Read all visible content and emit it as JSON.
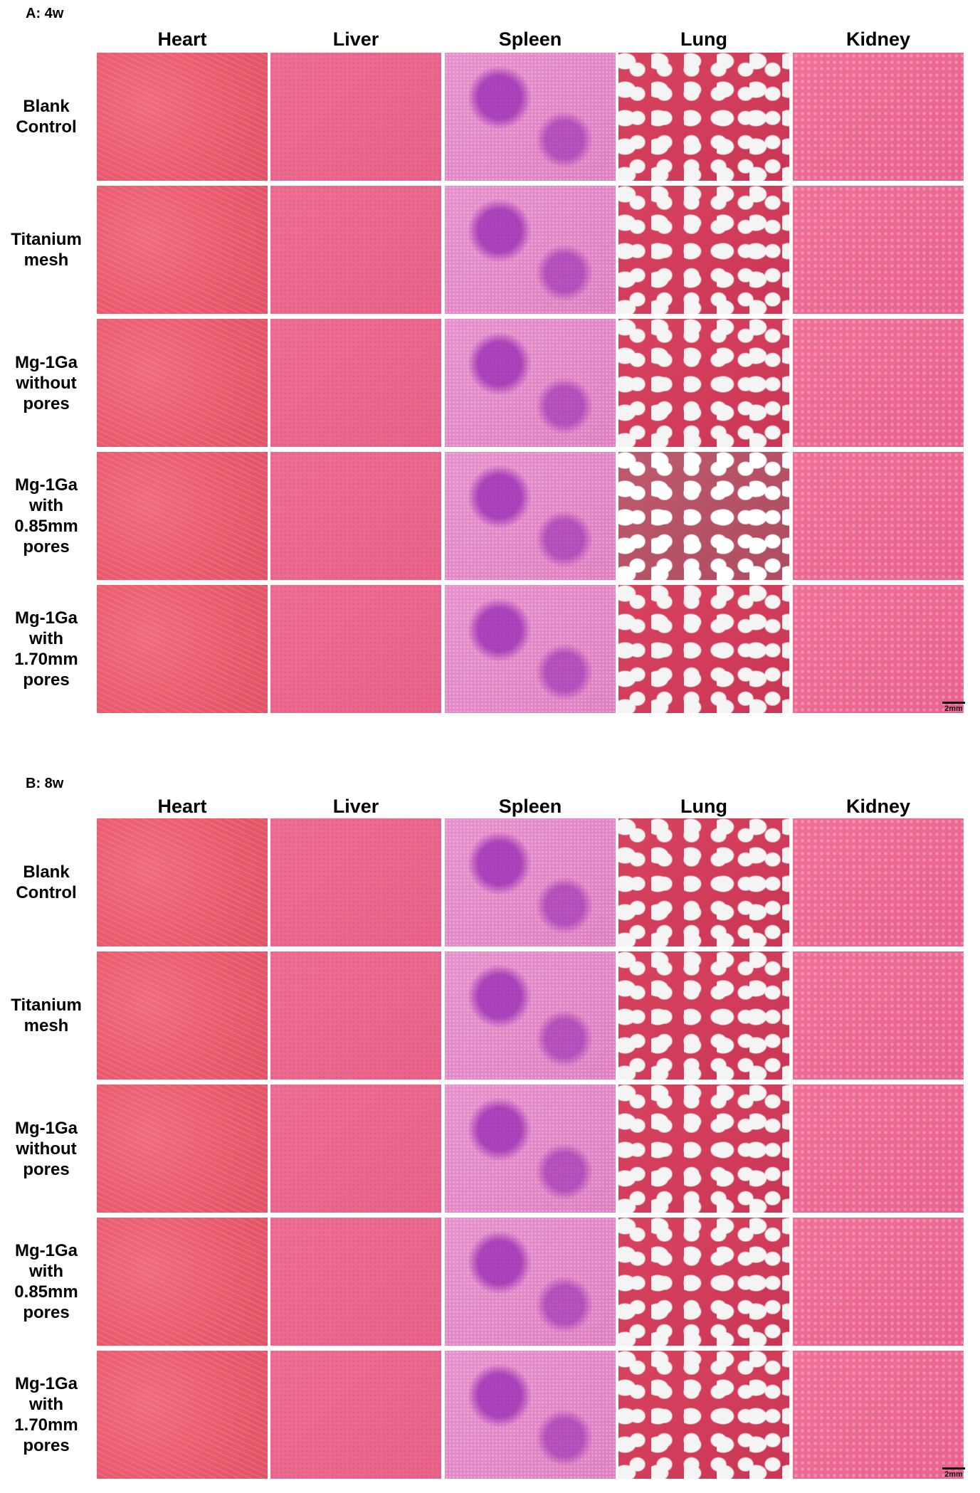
{
  "panels": [
    {
      "label": "A: 4w",
      "columns": [
        "Heart",
        "Liver",
        "Spleen",
        "Lung",
        "Kidney"
      ],
      "rows": [
        "Blank\nControl",
        "Titanium\nmesh",
        "Mg-1Ga\nwithout\npores",
        "Mg-1Ga\nwith\n0.85mm\npores",
        "Mg-1Ga\nwith\n1.70mm\npores"
      ],
      "scale_bar": "2mm"
    },
    {
      "label": "B: 8w",
      "columns": [
        "Heart",
        "Liver",
        "Spleen",
        "Lung",
        "Kidney"
      ],
      "rows": [
        "Blank\nControl",
        "Titanium\nmesh",
        "Mg-1Ga\nwithout\npores",
        "Mg-1Ga\nwith\n0.85mm\npores",
        "Mg-1Ga\nwith\n1.70mm\npores"
      ],
      "scale_bar": "2mm"
    }
  ]
}
